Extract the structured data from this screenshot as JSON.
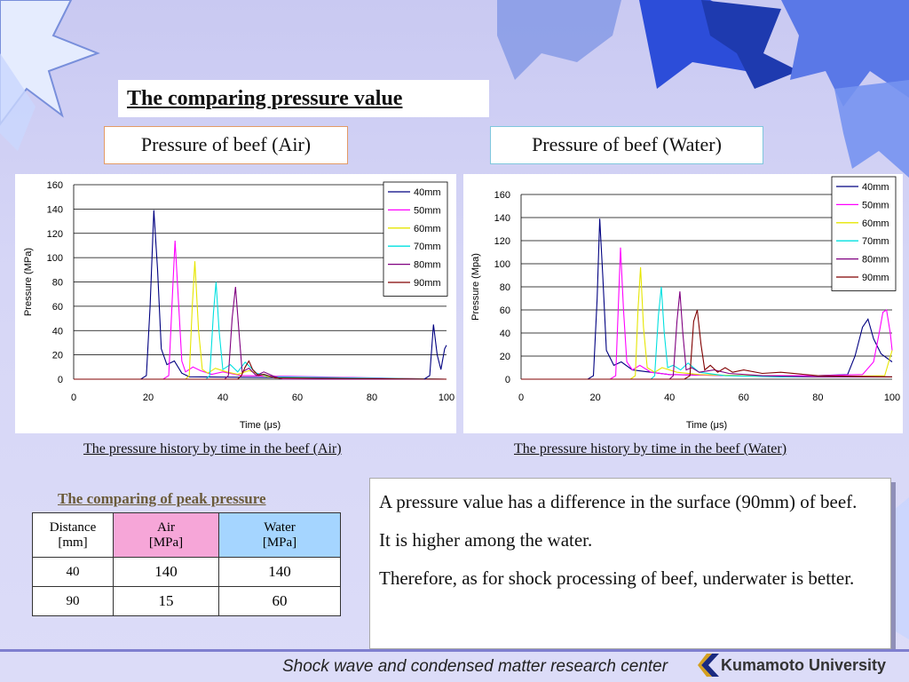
{
  "slide": {
    "title": "The comparing pressure value",
    "label_air": "Pressure of beef (Air)",
    "label_water": "Pressure of beef (Water)",
    "caption_air": "The pressure history by time in the beef (Air)",
    "caption_water": "The pressure history by time in the beef (Water)",
    "table_title": "The comparing of peak pressure",
    "table": {
      "headers": [
        "Distance\n[mm]",
        "Air\n[MPa]",
        "Water\n[MPa]"
      ],
      "header_distance": "Distance [mm]",
      "header_air": "Air [MPa]",
      "header_water": "Water [MPa]",
      "rows": [
        [
          "40",
          "140",
          "140"
        ],
        [
          "90",
          "15",
          "60"
        ]
      ]
    },
    "notes": [
      "A pressure value has a difference in the surface (90mm) of beef.",
      "It is higher among the water.",
      "Therefore, as for shock processing of beef, underwater is better."
    ],
    "footer": "Shock wave and condensed matter research center",
    "logo": "Kumamoto University",
    "colors": {
      "air_header": "#f6a6d8",
      "water_header": "#a5d5ff"
    }
  },
  "chart_data": [
    {
      "type": "line",
      "xlabel": "Time (μs)",
      "ylabel": "Pressure (MPa)",
      "xlim": [
        0,
        100
      ],
      "ylim": [
        0,
        160
      ],
      "xticks": [
        "0",
        "20",
        "40",
        "60",
        "80",
        "100"
      ],
      "yticks": [
        "0",
        "20",
        "40",
        "60",
        "80",
        "100",
        "120",
        "140",
        "160"
      ],
      "grid": "horizontal",
      "legend": "top-right",
      "series": [
        {
          "name": "40mm",
          "color": "#000080",
          "x": [
            0,
            18,
            19.5,
            20.5,
            21.5,
            22.5,
            23.5,
            25,
            27,
            29,
            31,
            100
          ],
          "y": [
            0,
            0,
            3,
            60,
            139,
            90,
            25,
            12,
            15,
            5,
            2,
            0
          ]
        },
        {
          "name": "50mm",
          "color": "#ff00ff",
          "x": [
            0,
            24,
            25.5,
            26.5,
            27.2,
            28,
            29,
            30,
            32,
            34,
            37,
            40,
            45,
            100
          ],
          "y": [
            0,
            0,
            3,
            70,
            114,
            70,
            15,
            6,
            10,
            7,
            4,
            6,
            3,
            0
          ]
        },
        {
          "name": "60mm",
          "color": "#e6e600",
          "x": [
            0,
            30,
            31,
            31.8,
            32.5,
            33.5,
            34.5,
            36,
            38,
            41,
            44,
            47,
            52,
            100
          ],
          "y": [
            0,
            0,
            3,
            60,
            97,
            40,
            8,
            5,
            9,
            6,
            4,
            7,
            2,
            0
          ]
        },
        {
          "name": "70mm",
          "color": "#00e0e0",
          "x": [
            0,
            35.5,
            36.5,
            37.5,
            38.2,
            39,
            40,
            42,
            44,
            46,
            49,
            53,
            100
          ],
          "y": [
            0,
            0,
            3,
            55,
            80,
            40,
            8,
            12,
            6,
            14,
            5,
            2,
            0
          ]
        },
        {
          "name": "80mm",
          "color": "#800080",
          "x": [
            0,
            40.5,
            41.5,
            42.5,
            43.4,
            44.3,
            45.2,
            47,
            49,
            51,
            54,
            56,
            100
          ],
          "y": [
            0,
            0,
            3,
            50,
            76,
            40,
            6,
            9,
            3,
            6,
            2,
            0,
            0
          ]
        },
        {
          "name": "90mm",
          "color": "#800000",
          "x": [
            0,
            44,
            45,
            46,
            47,
            48,
            49.5,
            51,
            54,
            100
          ],
          "y": [
            0,
            0,
            3,
            10,
            15,
            8,
            3,
            4,
            1,
            0
          ]
        }
      ],
      "extra_trace": {
        "color": "#000080",
        "x": [
          94,
          95.5,
          96.5,
          97.5,
          98.5,
          99.5,
          100
        ],
        "y": [
          0,
          3,
          45,
          20,
          8,
          25,
          28
        ]
      }
    },
    {
      "type": "line",
      "xlabel": "Time (μs)",
      "ylabel": "Pressure (Mpa)",
      "xlim": [
        0,
        100
      ],
      "ylim": [
        0,
        160
      ],
      "xticks": [
        "0",
        "20",
        "40",
        "60",
        "80",
        "100"
      ],
      "yticks": [
        "0",
        "20",
        "40",
        "60",
        "80",
        "100",
        "120",
        "140",
        "160"
      ],
      "grid": "horizontal",
      "legend": "top-right",
      "series": [
        {
          "name": "40mm",
          "color": "#000080",
          "x": [
            0,
            18,
            19.5,
            20.5,
            21.2,
            22,
            23,
            25,
            27,
            30,
            40,
            60,
            80,
            88,
            90,
            92,
            93.5,
            95,
            97,
            100
          ],
          "y": [
            0,
            0,
            3,
            70,
            139,
            90,
            25,
            12,
            15,
            8,
            4,
            3,
            3,
            4,
            20,
            45,
            52,
            35,
            22,
            15
          ]
        },
        {
          "name": "50mm",
          "color": "#ff00ff",
          "x": [
            0,
            24,
            25.5,
            26.3,
            26.8,
            27.6,
            28.5,
            30,
            32,
            35,
            40,
            60,
            80,
            92,
            95,
            96.5,
            97.5,
            98.5,
            99.5,
            100
          ],
          "y": [
            0,
            0,
            3,
            70,
            114,
            60,
            15,
            8,
            12,
            6,
            4,
            3,
            3,
            4,
            15,
            40,
            58,
            60,
            40,
            25
          ]
        },
        {
          "name": "60mm",
          "color": "#e6e600",
          "x": [
            0,
            29.5,
            30.8,
            31.5,
            32.2,
            33,
            34,
            36,
            38,
            42,
            48,
            60,
            80,
            98,
            100
          ],
          "y": [
            0,
            0,
            3,
            60,
            97,
            45,
            10,
            6,
            10,
            6,
            4,
            3,
            2,
            3,
            25
          ]
        },
        {
          "name": "70mm",
          "color": "#00e0e0",
          "x": [
            0,
            35,
            36,
            37,
            37.8,
            38.6,
            39.5,
            41,
            43,
            45,
            48,
            55,
            70,
            100
          ],
          "y": [
            0,
            0,
            3,
            55,
            80,
            40,
            10,
            12,
            8,
            14,
            6,
            3,
            2,
            2
          ]
        },
        {
          "name": "80mm",
          "color": "#800080",
          "x": [
            0,
            40,
            41,
            42,
            42.8,
            43.6,
            44.5,
            46,
            48,
            52,
            56,
            65,
            80,
            100
          ],
          "y": [
            0,
            0,
            3,
            50,
            76,
            40,
            8,
            10,
            6,
            8,
            5,
            3,
            2,
            2
          ]
        },
        {
          "name": "90mm",
          "color": "#800000",
          "x": [
            0,
            44,
            45.5,
            46.5,
            47.5,
            48.5,
            49.5,
            51,
            53,
            55,
            57,
            60,
            65,
            70,
            80,
            100
          ],
          "y": [
            0,
            0,
            3,
            50,
            60,
            30,
            8,
            12,
            6,
            10,
            6,
            8,
            5,
            6,
            3,
            2
          ]
        }
      ]
    }
  ]
}
